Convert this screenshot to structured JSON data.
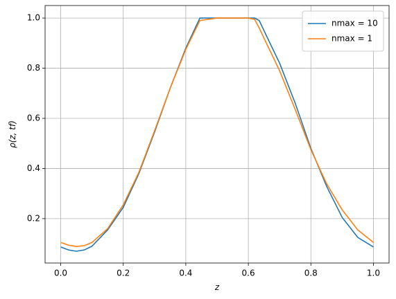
{
  "chart_data": {
    "type": "line",
    "xlabel": "z",
    "ylabel": "ρ(z, tf)",
    "x": [
      0,
      0.025,
      0.05,
      0.075,
      0.1,
      0.15,
      0.2,
      0.25,
      0.3,
      0.35,
      0.4,
      0.445,
      0.5,
      0.55,
      0.6,
      0.62,
      0.635,
      0.65,
      0.7,
      0.75,
      0.8,
      0.85,
      0.9,
      0.95,
      1.0
    ],
    "series": [
      {
        "name": "nmax = 10",
        "color": "#1f77b4",
        "values": [
          0.087,
          0.075,
          0.07,
          0.075,
          0.09,
          0.155,
          0.245,
          0.38,
          0.545,
          0.72,
          0.88,
          1.0,
          1.0,
          1.0,
          1.0,
          1.0,
          0.99,
          0.95,
          0.82,
          0.66,
          0.48,
          0.33,
          0.205,
          0.125,
          0.087
        ]
      },
      {
        "name": "nmax = 1",
        "color": "#ff7f0e",
        "values": [
          0.105,
          0.094,
          0.089,
          0.092,
          0.105,
          0.16,
          0.255,
          0.385,
          0.55,
          0.72,
          0.875,
          0.99,
          1.0,
          1.0,
          1.0,
          0.995,
          0.96,
          0.92,
          0.79,
          0.635,
          0.475,
          0.34,
          0.235,
          0.155,
          0.105
        ]
      }
    ],
    "xlim": [
      -0.05,
      1.05
    ],
    "ylim": [
      0.023,
      1.05
    ],
    "xticks": [
      {
        "value": 0,
        "label": "0.0"
      },
      0.2,
      0.4,
      0.6,
      0.8,
      {
        "value": 1,
        "label": "1.0"
      }
    ],
    "yticks": [
      0.2,
      0.4,
      0.6,
      0.8,
      {
        "value": 1,
        "label": "1.0"
      }
    ],
    "grid": true,
    "legend": "upper right"
  }
}
